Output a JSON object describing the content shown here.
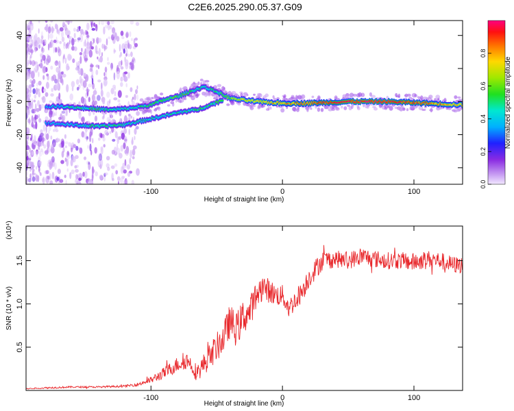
{
  "title": "C2E6.2025.290.05.37.G09",
  "chart_data": [
    {
      "type": "heatmap",
      "name": "spectrogram",
      "xlabel": "Height of straight line (km)",
      "ylabel": "Frequency (Hz)",
      "xlim": [
        -195,
        137
      ],
      "ylim": [
        -50,
        49
      ],
      "xticks": [
        -100,
        0,
        100
      ],
      "xtick_labels": [
        "-100",
        "0",
        "100"
      ],
      "yticks": [
        -40,
        -20,
        0,
        20,
        40
      ],
      "ytick_labels": [
        "-40",
        "-20",
        "0",
        "20",
        "40"
      ],
      "colorbar": {
        "label": "Normalized spectral amplitude",
        "range": [
          0,
          1
        ],
        "ticks": [
          0.0,
          0.2,
          0.4,
          0.6,
          0.8
        ],
        "tick_labels": [
          "0.0",
          "0.2",
          "0.4",
          "0.6",
          "0.8"
        ]
      },
      "ridge": [
        {
          "x": -180,
          "f": -3,
          "a": 0.35
        },
        {
          "x": -165,
          "f": -3,
          "a": 0.45
        },
        {
          "x": -150,
          "f": -4,
          "a": 0.5
        },
        {
          "x": -130,
          "f": -5,
          "a": 0.45
        },
        {
          "x": -115,
          "f": -4,
          "a": 0.45
        },
        {
          "x": -100,
          "f": -2,
          "a": 0.5
        },
        {
          "x": -90,
          "f": 1,
          "a": 0.55
        },
        {
          "x": -80,
          "f": 3,
          "a": 0.55
        },
        {
          "x": -70,
          "f": 6,
          "a": 0.5
        },
        {
          "x": -60,
          "f": 9,
          "a": 0.45
        },
        {
          "x": -50,
          "f": 6,
          "a": 0.5
        },
        {
          "x": -40,
          "f": 2,
          "a": 0.6
        },
        {
          "x": -30,
          "f": 1,
          "a": 0.7
        },
        {
          "x": -20,
          "f": 0,
          "a": 0.75
        },
        {
          "x": 0,
          "f": -1,
          "a": 0.8
        },
        {
          "x": 20,
          "f": -1,
          "a": 0.85
        },
        {
          "x": 50,
          "f": 0,
          "a": 0.95
        },
        {
          "x": 80,
          "f": 0,
          "a": 0.95
        },
        {
          "x": 110,
          "f": -1,
          "a": 0.85
        },
        {
          "x": 137,
          "f": -2,
          "a": 0.75
        }
      ],
      "secondary_ridge": [
        {
          "x": -180,
          "f": -13,
          "a": 0.35
        },
        {
          "x": -160,
          "f": -14,
          "a": 0.4
        },
        {
          "x": -140,
          "f": -15,
          "a": 0.5
        },
        {
          "x": -120,
          "f": -14,
          "a": 0.45
        },
        {
          "x": -75,
          "f": -6,
          "a": 0.45
        },
        {
          "x": -65,
          "f": -5,
          "a": 0.5
        },
        {
          "x": -55,
          "f": -2,
          "a": 0.5
        },
        {
          "x": -45,
          "f": 1,
          "a": 0.55
        }
      ]
    },
    {
      "type": "line",
      "name": "snr",
      "xlabel": "Height of straight line (km)",
      "ylabel": "SNR (10 * v/v)",
      "y_multiplier": "(x10⁴)",
      "xlim": [
        -195,
        137
      ],
      "ylim": [
        0,
        1.9
      ],
      "xticks": [
        -100,
        0,
        100
      ],
      "xtick_labels": [
        "-100",
        "0",
        "100"
      ],
      "yticks": [
        0.5,
        1.0,
        1.5
      ],
      "ytick_labels": [
        "0.5",
        "1.0",
        "1.5"
      ],
      "color": "#e8272b",
      "x": [
        -195,
        -180,
        -160,
        -140,
        -120,
        -110,
        -100,
        -90,
        -80,
        -72,
        -65,
        -55,
        -45,
        -40,
        -35,
        -30,
        -25,
        -20,
        -15,
        -10,
        -5,
        0,
        5,
        10,
        15,
        20,
        25,
        30,
        40,
        50,
        60,
        70,
        80,
        90,
        100,
        110,
        120,
        130,
        137
      ],
      "values": [
        0.02,
        0.03,
        0.04,
        0.04,
        0.05,
        0.07,
        0.12,
        0.2,
        0.3,
        0.35,
        0.2,
        0.4,
        0.6,
        0.8,
        0.7,
        0.85,
        0.9,
        1.1,
        1.2,
        1.15,
        1.1,
        1.1,
        0.95,
        1.05,
        1.15,
        1.3,
        1.4,
        1.5,
        1.52,
        1.5,
        1.55,
        1.52,
        1.5,
        1.5,
        1.48,
        1.52,
        1.5,
        1.45,
        1.45
      ],
      "noise": [
        0.005,
        0.01,
        0.01,
        0.01,
        0.012,
        0.02,
        0.04,
        0.07,
        0.09,
        0.1,
        0.1,
        0.15,
        0.18,
        0.2,
        0.2,
        0.2,
        0.18,
        0.17,
        0.15,
        0.14,
        0.13,
        0.12,
        0.12,
        0.12,
        0.13,
        0.12,
        0.12,
        0.12,
        0.1,
        0.1,
        0.11,
        0.1,
        0.1,
        0.1,
        0.11,
        0.1,
        0.1,
        0.1,
        0.1
      ]
    }
  ]
}
